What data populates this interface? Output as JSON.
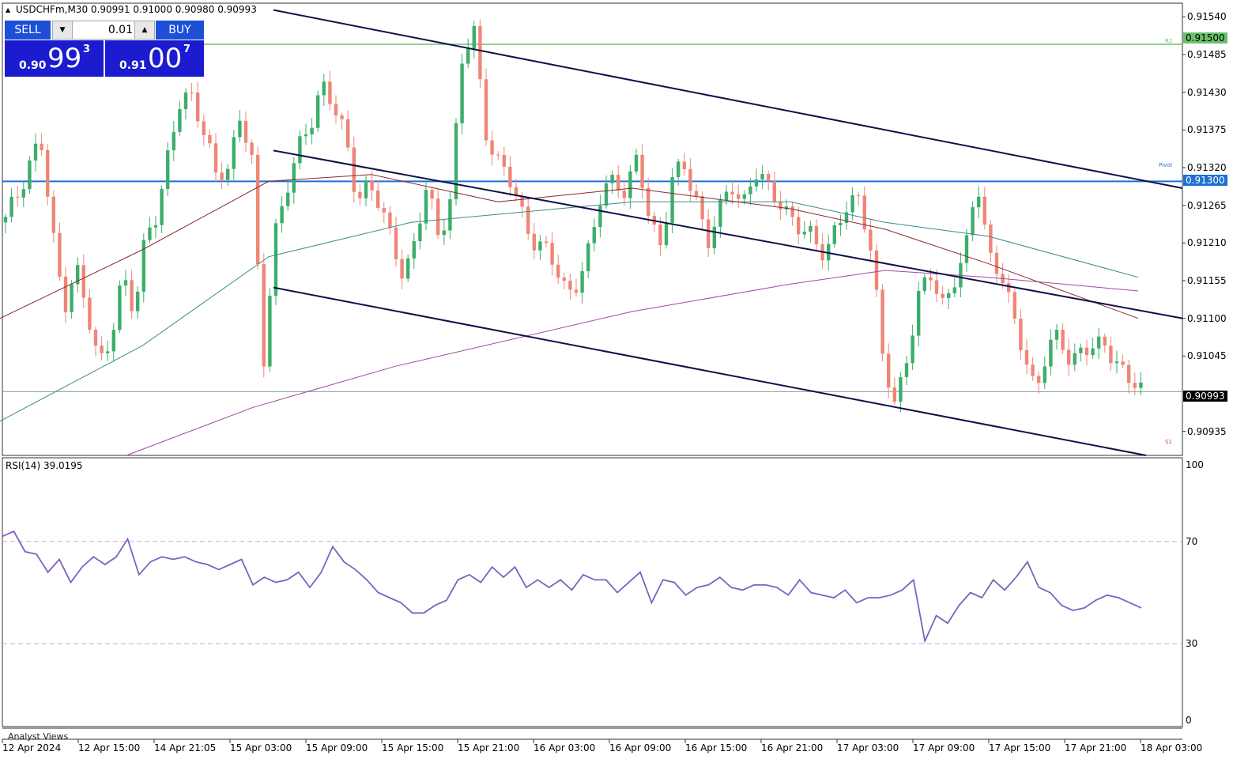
{
  "chart_title": "USDCHFm,M30  0.90991 0.91000 0.90980 0.90993",
  "trade_panel": {
    "sell_label": "SELL",
    "buy_label": "BUY",
    "lot_value": "0.01",
    "sell_price_big": "0.90",
    "sell_price_digits": "99",
    "sell_price_sup": "3",
    "buy_price_big": "0.91",
    "buy_price_digits": "00",
    "buy_price_sup": "7"
  },
  "price_axis_labels": [
    "0.91540",
    "0.91485",
    "0.91430",
    "0.91375",
    "0.91320",
    "0.91265",
    "0.91210",
    "0.91155",
    "0.91100",
    "0.91045",
    "0.90935"
  ],
  "price_tags": {
    "r2_price": "0.91500",
    "pivot_price": "0.91300",
    "current_price": "0.90993"
  },
  "level_names": {
    "r2": "R2",
    "pivot": "Pivot",
    "s1": "S1"
  },
  "rsi": {
    "title": "RSI(14) 39.0195",
    "levels": [
      "100",
      "70",
      "30",
      "0"
    ]
  },
  "analyst_label": "Analyst Views",
  "colors": {
    "bull": "#3cae6b",
    "bear": "#ee8677",
    "ma_dark": "#8b2a2a",
    "ma_teal": "#3f8a8a",
    "ma_purple": "#a04aa0",
    "rsi_line": "#8060c0",
    "pivot_line": "#1d6fd6",
    "r2_line": "#6ac06a",
    "trade_button": "#1e4fd8",
    "quote_box": "#1b1bcf"
  },
  "chart_data": {
    "type": "candlestick",
    "symbol": "USDCHFm",
    "timeframe": "M30",
    "y_range": [
      0.909,
      0.9156
    ],
    "time_labels": [
      "12 Apr 2024",
      "12 Apr 15:00",
      "14 Apr 21:05",
      "15 Apr 03:00",
      "15 Apr 09:00",
      "15 Apr 15:00",
      "15 Apr 21:00",
      "16 Apr 03:00",
      "16 Apr 09:00",
      "16 Apr 15:00",
      "16 Apr 21:00",
      "17 Apr 03:00",
      "17 Apr 09:00",
      "17 Apr 15:00",
      "17 Apr 21:00",
      "18 Apr 03:00"
    ],
    "levels": {
      "r2": 0.915,
      "pivot": 0.913,
      "current": 0.90993
    },
    "ohlc_anchor_prices": [
      0.9124,
      0.9128,
      0.9133,
      0.9136,
      0.9122,
      0.9112,
      0.9118,
      0.911,
      0.9103,
      0.9108,
      0.9116,
      0.911,
      0.9123,
      0.9126,
      0.9134,
      0.9142,
      0.9143,
      0.9137,
      0.913,
      0.9132,
      0.914,
      0.9134,
      0.9102,
      0.9123,
      0.9129,
      0.9134,
      0.9138,
      0.9145,
      0.9141,
      0.9136,
      0.9128,
      0.913,
      0.9126,
      0.9121,
      0.9117,
      0.9121,
      0.9129,
      0.9122,
      0.9128,
      0.9147,
      0.9152,
      0.9138,
      0.9133,
      0.913,
      0.9126,
      0.9122,
      0.912,
      0.9117,
      0.9114,
      0.9116,
      0.912,
      0.9129,
      0.9131,
      0.9128,
      0.9133,
      0.9125,
      0.9121,
      0.913,
      0.9132,
      0.9128,
      0.9121,
      0.9125,
      0.913,
      0.9127,
      0.9131,
      0.9129,
      0.9128,
      0.9125,
      0.9122,
      0.9122,
      0.912,
      0.9123,
      0.9126,
      0.9128,
      0.912,
      0.9103,
      0.9097,
      0.9105,
      0.9113,
      0.9116,
      0.9112,
      0.9116,
      0.9119,
      0.913,
      0.912,
      0.9117,
      0.911,
      0.9105,
      0.91,
      0.9105,
      0.9107,
      0.9104,
      0.9106,
      0.9105,
      0.9106,
      0.9104,
      0.9101,
      0.9099
    ],
    "ma_dark_anchors": [
      [
        0,
        0.911
      ],
      [
        180,
        0.912
      ],
      [
        340,
        0.913
      ],
      [
        470,
        0.9131
      ],
      [
        630,
        0.9127
      ],
      [
        800,
        0.9129
      ],
      [
        1000,
        0.9126
      ],
      [
        1120,
        0.9123
      ],
      [
        1250,
        0.9118
      ],
      [
        1440,
        0.911
      ]
    ],
    "ma_teal_anchors": [
      [
        0,
        0.9095
      ],
      [
        180,
        0.9106
      ],
      [
        340,
        0.9119
      ],
      [
        520,
        0.9124
      ],
      [
        800,
        0.9127
      ],
      [
        1000,
        0.9127
      ],
      [
        1120,
        0.9124
      ],
      [
        1250,
        0.9122
      ],
      [
        1440,
        0.9116
      ]
    ],
    "ma_purple_anchors": [
      [
        160,
        0.909
      ],
      [
        320,
        0.9097
      ],
      [
        500,
        0.9103
      ],
      [
        800,
        0.9111
      ],
      [
        1000,
        0.9115
      ],
      [
        1120,
        0.9117
      ],
      [
        1250,
        0.9116
      ],
      [
        1440,
        0.9114
      ]
    ],
    "channel_lines": [
      {
        "x1": 346,
        "y1": 0.9155,
        "x2": 1496,
        "y2": 0.9129
      },
      {
        "x1": 346,
        "y1": 0.91345,
        "x2": 1496,
        "y2": 0.911
      },
      {
        "x1": 346,
        "y1": 0.91145,
        "x2": 1450,
        "y2": 0.909
      }
    ],
    "rsi_values": [
      72,
      74,
      66,
      65,
      58,
      63,
      54,
      60,
      64,
      61,
      64,
      71,
      57,
      62,
      64,
      63,
      64,
      62,
      61,
      59,
      61,
      63,
      53,
      56,
      54,
      55,
      58,
      52,
      58,
      68,
      62,
      59,
      55,
      50,
      48,
      46,
      42,
      42,
      45,
      47,
      55,
      57,
      54,
      60,
      56,
      60,
      52,
      55,
      52,
      55,
      51,
      57,
      55,
      55,
      50,
      54,
      58,
      46,
      55,
      54,
      49,
      52,
      53,
      56,
      52,
      51,
      53,
      53,
      52,
      49,
      55,
      50,
      49,
      48,
      51,
      46,
      48,
      48,
      49,
      51,
      55,
      31,
      41,
      38,
      45,
      50,
      48,
      55,
      51,
      56,
      62,
      52,
      50,
      45,
      43,
      44,
      47,
      49,
      48,
      46,
      44
    ]
  }
}
